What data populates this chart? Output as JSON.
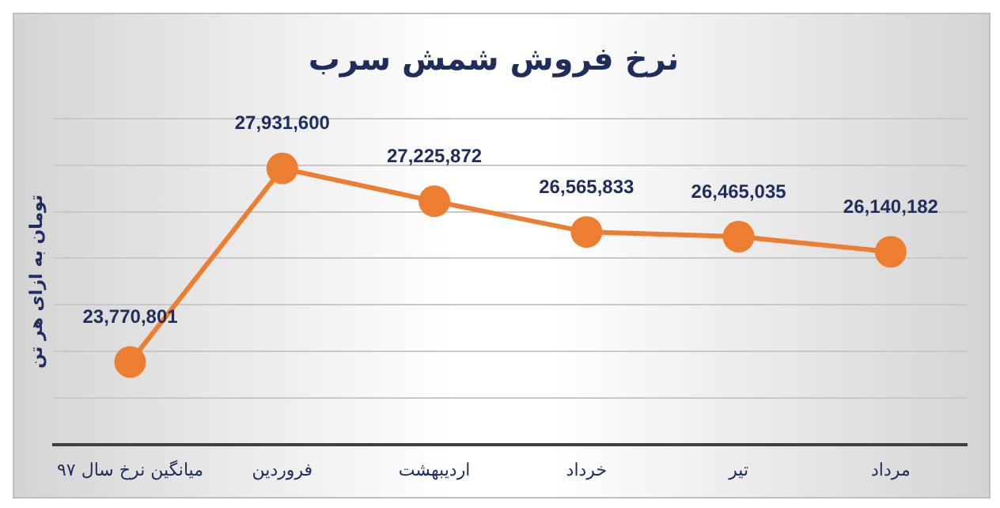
{
  "chart_data": {
    "type": "line",
    "title": "نرخ فروش شمش سرب",
    "ylabel": "تومان به ازای هر تن",
    "categories": [
      "میانگین نرخ سال ۹۷",
      "فروردین",
      "اردیبهشت",
      "خرداد",
      "تیر",
      "مرداد"
    ],
    "series": [
      {
        "color": "#ed7d31",
        "values": [
          23770801,
          27931600,
          27225872,
          26565833,
          26465035,
          26140182
        ],
        "value_labels": [
          "23,770,801",
          "27,931,600",
          "27,225,872",
          "26,565,833",
          "26,465,035",
          "26,140,182"
        ]
      }
    ],
    "tick_labels": "x",
    "grid": "y",
    "legend": false,
    "marker": "circle",
    "line_style": "solid"
  }
}
